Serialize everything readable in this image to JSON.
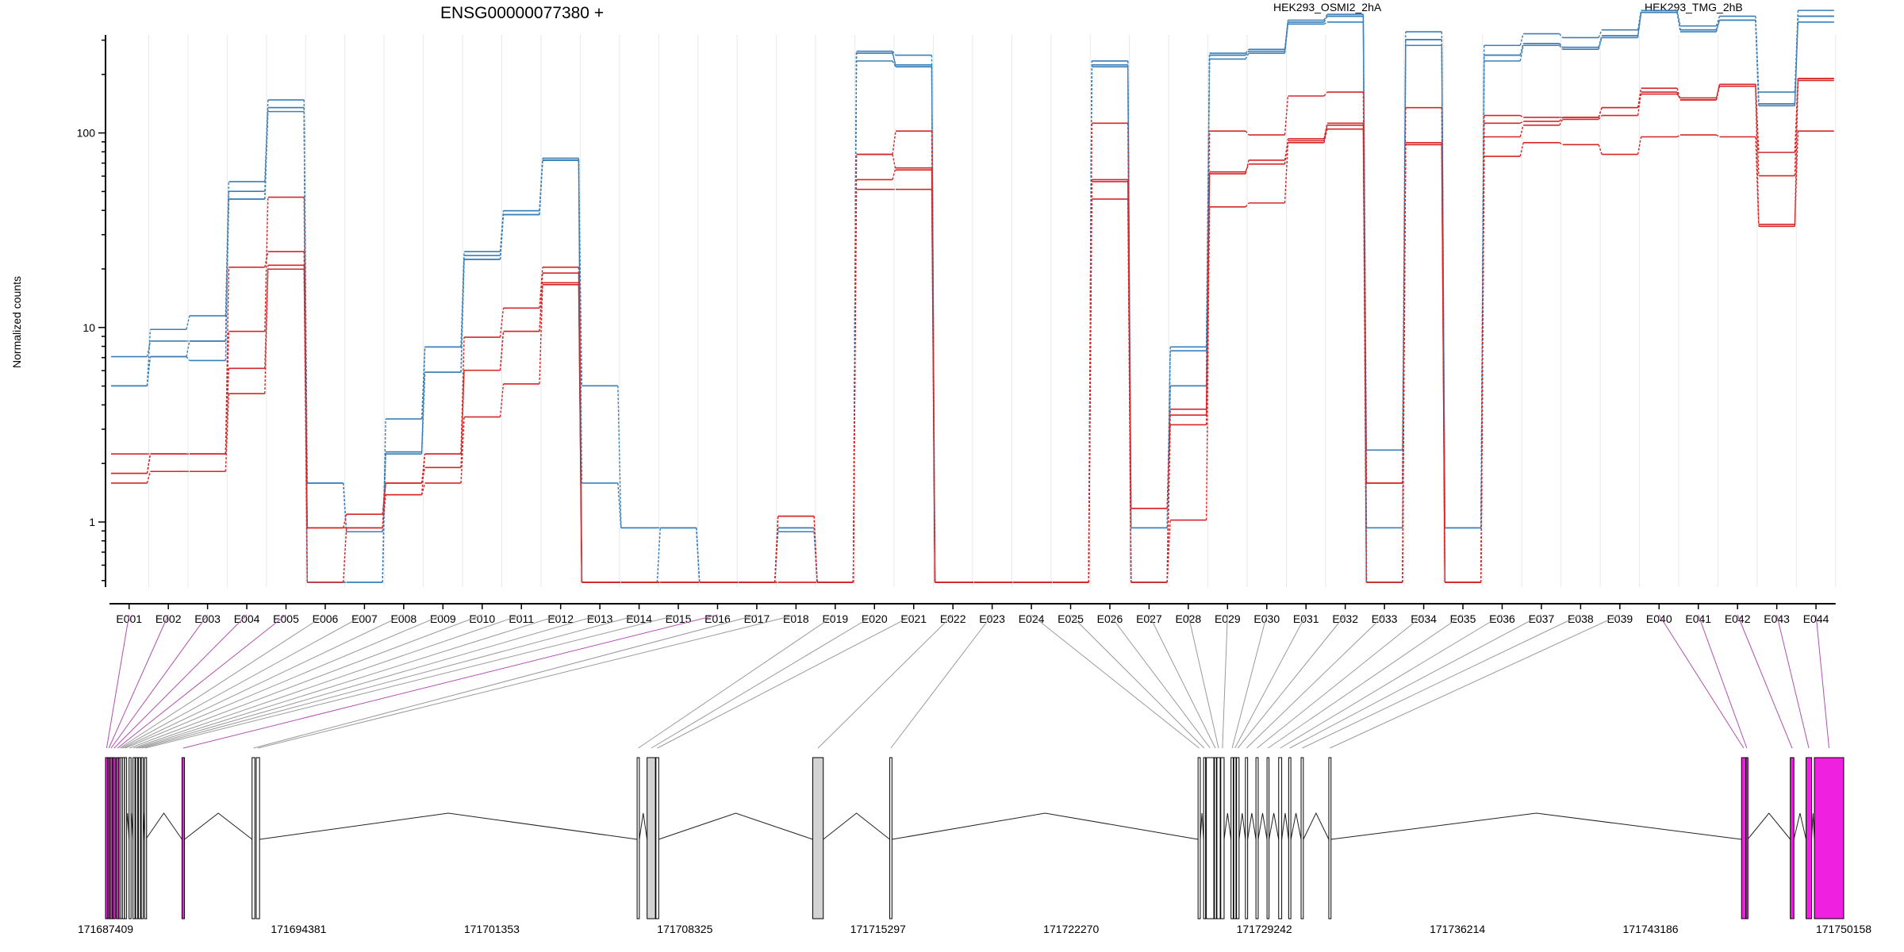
{
  "chart_data": {
    "type": "line",
    "title": "ENSG00000077380 +",
    "ylabel": "Normalized counts",
    "yscale": "log",
    "yticks": [
      1,
      10,
      100
    ],
    "ytick_labels": [
      "1",
      "10",
      "100"
    ],
    "ylim_log10": [
      -0.33,
      1.88
    ],
    "exons": [
      "E001",
      "E002",
      "E003",
      "E004",
      "E005",
      "E006",
      "E007",
      "E008",
      "E009",
      "E010",
      "E011",
      "E012",
      "E013",
      "E014",
      "E015",
      "E016",
      "E017",
      "E018",
      "E019",
      "E020",
      "E021",
      "E022",
      "E023",
      "E024",
      "E025",
      "E026",
      "E027",
      "E028",
      "E029",
      "E030",
      "E031",
      "E032",
      "E033",
      "E034",
      "E035",
      "E036",
      "E037",
      "E038",
      "E039",
      "E040",
      "E041",
      "E042",
      "E043",
      "E044"
    ],
    "colors": {
      "HEK293_OSMI2_2hA": "#d62728",
      "HEK293_TMG_2hB": "#3b7fb8"
    },
    "legend": [
      {
        "label": "HEK293_OSMI2_2hA",
        "color": "#d62728"
      },
      {
        "label": "HEK293_TMG_2hB",
        "color": "#3b7fb8"
      }
    ],
    "series": [
      {
        "group": "HEK293_TMG_2hB",
        "color": "#3b7fb8",
        "log10": [
          0.7,
          0.85,
          0.83,
          1.66,
          2.13,
          -0.31,
          -0.31,
          0.36,
          0.77,
          1.35,
          1.58,
          1.86,
          -0.31,
          -0.31,
          -0.31,
          -0.31,
          -0.31,
          -0.03,
          -0.31,
          2.37,
          2.34,
          -0.31,
          -0.31,
          -0.31,
          -0.31,
          2.35,
          -0.31,
          0.7,
          2.4,
          2.42,
          2.57,
          2.6,
          -0.31,
          2.48,
          -0.31,
          2.4,
          2.46,
          2.44,
          2.5,
          2.62,
          2.53,
          2.58,
          2.15,
          2.6
        ]
      },
      {
        "group": "HEK293_TMG_2hB",
        "color": "#3b7fb8",
        "log10": [
          0.7,
          0.99,
          1.06,
          1.75,
          2.17,
          -0.31,
          -0.31,
          0.53,
          0.9,
          1.39,
          1.6,
          1.87,
          -0.31,
          -0.31,
          -0.03,
          -0.31,
          -0.31,
          -0.05,
          -0.31,
          2.42,
          2.4,
          -0.31,
          -0.31,
          -0.31,
          -0.31,
          2.37,
          -0.31,
          0.88,
          2.41,
          2.43,
          2.58,
          2.61,
          0.37,
          2.52,
          -0.03,
          2.45,
          2.51,
          2.49,
          2.53,
          2.63,
          2.55,
          2.6,
          2.21,
          2.63
        ]
      },
      {
        "group": "HEK293_TMG_2hB",
        "color": "#3b7fb8",
        "log10": [
          0.85,
          0.93,
          0.93,
          1.7,
          2.11,
          0.2,
          -0.05,
          0.35,
          0.9,
          1.37,
          1.6,
          1.86,
          0.7,
          -0.03,
          -0.03,
          -0.31,
          -0.31,
          -0.03,
          -0.31,
          2.41,
          2.35,
          -0.31,
          -0.31,
          -0.31,
          -0.31,
          2.34,
          -0.03,
          0.9,
          2.38,
          2.41,
          2.56,
          2.57,
          -0.03,
          2.45,
          -0.03,
          2.37,
          2.45,
          2.43,
          2.49,
          2.62,
          2.52,
          2.58,
          2.14,
          2.57
        ]
      },
      {
        "group": "HEK293_TMG_2hB",
        "color": "#3b7fb8",
        "log10": [
          0.7,
          0.85,
          0.93,
          1.66,
          2.13,
          0.2,
          -0.05,
          0.36,
          0.77,
          1.35,
          1.58,
          1.86,
          0.2,
          -0.03,
          -0.03,
          -0.31,
          -0.31,
          -0.03,
          -0.31,
          2.42,
          2.34,
          -0.31,
          -0.31,
          -0.31,
          -0.31,
          2.37,
          -0.03,
          0.7,
          2.4,
          2.42,
          2.57,
          2.6,
          -0.31,
          2.48,
          -0.03,
          2.4,
          2.46,
          2.44,
          2.5,
          2.62,
          2.53,
          2.58,
          2.15,
          2.6
        ]
      },
      {
        "group": "HEK293_OSMI2_2hA",
        "color": "#d62728",
        "log10": [
          0.25,
          0.35,
          0.35,
          0.79,
          1.3,
          -0.03,
          0.04,
          0.2,
          0.28,
          0.78,
          0.98,
          1.23,
          -0.31,
          -0.31,
          -0.31,
          -0.31,
          -0.31,
          0.03,
          -0.31,
          1.89,
          1.81,
          -0.31,
          -0.31,
          -0.31,
          -0.31,
          1.75,
          0.07,
          0.55,
          1.79,
          1.86,
          1.96,
          2.04,
          -0.31,
          1.94,
          -0.31,
          1.98,
          2.04,
          2.07,
          2.09,
          2.21,
          2.17,
          2.24,
          1.52,
          2.27
        ]
      },
      {
        "group": "HEK293_OSMI2_2hA",
        "color": "#d62728",
        "log10": [
          0.2,
          0.26,
          0.26,
          0.66,
          1.32,
          -0.31,
          -0.03,
          0.14,
          0.2,
          0.54,
          0.71,
          1.22,
          -0.31,
          -0.31,
          -0.31,
          -0.31,
          -0.31,
          -0.31,
          -0.31,
          1.71,
          1.71,
          -0.31,
          -0.31,
          -0.31,
          -0.31,
          1.66,
          -0.31,
          0.01,
          1.62,
          1.64,
          1.95,
          2.02,
          -0.31,
          1.94,
          -0.31,
          1.88,
          1.95,
          1.94,
          1.89,
          1.98,
          1.99,
          1.98,
          1.53,
          2.01
        ]
      },
      {
        "group": "HEK293_OSMI2_2hA",
        "color": "#d62728",
        "log10": [
          0.35,
          0.35,
          0.35,
          1.31,
          1.39,
          -0.03,
          -0.03,
          0.2,
          0.35,
          0.95,
          1.1,
          1.31,
          -0.31,
          -0.31,
          -0.31,
          -0.31,
          -0.31,
          -0.31,
          -0.31,
          1.76,
          1.82,
          -0.31,
          -0.31,
          -0.31,
          -0.31,
          1.76,
          -0.31,
          0.5,
          1.8,
          1.84,
          1.97,
          2.05,
          0.2,
          1.95,
          -0.31,
          2.05,
          2.06,
          2.08,
          2.13,
          2.2,
          2.18,
          2.25,
          1.78,
          2.28
        ]
      },
      {
        "group": "HEK293_OSMI2_2hA",
        "color": "#d62728",
        "log10": [
          0.25,
          0.35,
          0.35,
          0.98,
          1.67,
          -0.03,
          -0.03,
          0.14,
          0.35,
          0.78,
          0.98,
          1.28,
          -0.31,
          -0.31,
          -0.31,
          -0.31,
          -0.31,
          0.03,
          -0.31,
          1.89,
          2.01,
          -0.31,
          -0.31,
          -0.31,
          -0.31,
          2.05,
          0.07,
          0.58,
          2.01,
          1.99,
          2.19,
          2.21,
          0.2,
          2.13,
          -0.31,
          2.09,
          2.08,
          2.08,
          2.13,
          2.23,
          2.17,
          2.25,
          1.9,
          2.28
        ]
      }
    ],
    "gene_model": {
      "axis_ticks": [
        "171687409",
        "171694381",
        "171701353",
        "171708325",
        "171715297",
        "171722270",
        "171729242",
        "171736214",
        "171743186",
        "171750158"
      ],
      "coord_range": [
        171687409,
        171750158
      ],
      "exon_blocks": [
        {
          "exon": "E001",
          "start": 171687409,
          "end": 171687490,
          "tested": false
        },
        {
          "exon": "E002",
          "start": 171687500,
          "end": 171687560,
          "tested": false
        },
        {
          "exon": "E003",
          "start": 171687570,
          "end": 171687650,
          "tested": false
        },
        {
          "exon": "E004",
          "start": 171687680,
          "end": 171687760,
          "tested": false
        },
        {
          "exon": "E005",
          "start": 171687800,
          "end": 171687880,
          "tested": false
        },
        {
          "exon": "E006",
          "start": 171687900,
          "end": 171687940,
          "tested": true
        },
        {
          "exon": "E007",
          "start": 171687960,
          "end": 171688000,
          "tested": true
        },
        {
          "exon": "E008",
          "start": 171688020,
          "end": 171688080,
          "tested": true
        },
        {
          "exon": "E009",
          "start": 171688100,
          "end": 171688150,
          "tested": true
        },
        {
          "exon": "E010",
          "start": 171688260,
          "end": 171688290,
          "tested": true
        },
        {
          "exon": "E011",
          "start": 171688400,
          "end": 171688430,
          "tested": true
        },
        {
          "exon": "E012",
          "start": 171688500,
          "end": 171688540,
          "tested": true
        },
        {
          "exon": "E013",
          "start": 171688600,
          "end": 171688630,
          "tested": true
        },
        {
          "exon": "E014",
          "start": 171688700,
          "end": 171688730,
          "tested": true
        },
        {
          "exon": "E015",
          "start": 171688820,
          "end": 171688860,
          "tested": true
        },
        {
          "exon": "E016",
          "start": 171690170,
          "end": 171690260,
          "tested": false
        },
        {
          "exon": "E017",
          "start": 171692700,
          "end": 171692800,
          "tested": true
        },
        {
          "exon": "E018",
          "start": 171692850,
          "end": 171692970,
          "tested": true
        },
        {
          "exon": "E019",
          "start": 171706600,
          "end": 171706680,
          "tested": true
        },
        {
          "exon": "E020",
          "start": 171706960,
          "end": 171707260,
          "tested": true
        },
        {
          "exon": "E021",
          "start": 171707280,
          "end": 171707380,
          "tested": true
        },
        {
          "exon": "E022",
          "start": 171712940,
          "end": 171713320,
          "tested": true
        },
        {
          "exon": "E023",
          "start": 171715720,
          "end": 171715800,
          "tested": true
        },
        {
          "exon": "E024",
          "start": 171726850,
          "end": 171726930,
          "tested": true
        },
        {
          "exon": "E025",
          "start": 171727050,
          "end": 171727090,
          "tested": true
        },
        {
          "exon": "E026",
          "start": 171727150,
          "end": 171727420,
          "tested": true
        },
        {
          "exon": "E027",
          "start": 171727440,
          "end": 171727510,
          "tested": true
        },
        {
          "exon": "E028",
          "start": 171727530,
          "end": 171727650,
          "tested": true
        },
        {
          "exon": "E029",
          "start": 171727670,
          "end": 171727790,
          "tested": true
        },
        {
          "exon": "E030",
          "start": 171728040,
          "end": 171728120,
          "tested": true
        },
        {
          "exon": "E031",
          "start": 171728140,
          "end": 171728220,
          "tested": true
        },
        {
          "exon": "E032",
          "start": 171728240,
          "end": 171728330,
          "tested": true
        },
        {
          "exon": "E033",
          "start": 171728560,
          "end": 171728640,
          "tested": true
        },
        {
          "exon": "E034",
          "start": 171728940,
          "end": 171729020,
          "tested": true
        },
        {
          "exon": "E035",
          "start": 171729340,
          "end": 171729410,
          "tested": true
        },
        {
          "exon": "E036",
          "start": 171729760,
          "end": 171729870,
          "tested": true
        },
        {
          "exon": "E037",
          "start": 171730120,
          "end": 171730200,
          "tested": true
        },
        {
          "exon": "E038",
          "start": 171730570,
          "end": 171730650,
          "tested": true
        },
        {
          "exon": "E039",
          "start": 171731570,
          "end": 171731650,
          "tested": true
        },
        {
          "exon": "E040",
          "start": 171746470,
          "end": 171746620,
          "tested": false
        },
        {
          "exon": "E041",
          "start": 171746630,
          "end": 171746690,
          "tested": false
        },
        {
          "exon": "E042",
          "start": 171748230,
          "end": 171748360,
          "tested": false
        },
        {
          "exon": "E043",
          "start": 171748800,
          "end": 171749000,
          "tested": false
        },
        {
          "exon": "E044",
          "start": 171749100,
          "end": 171750158,
          "tested": false
        }
      ]
    }
  }
}
